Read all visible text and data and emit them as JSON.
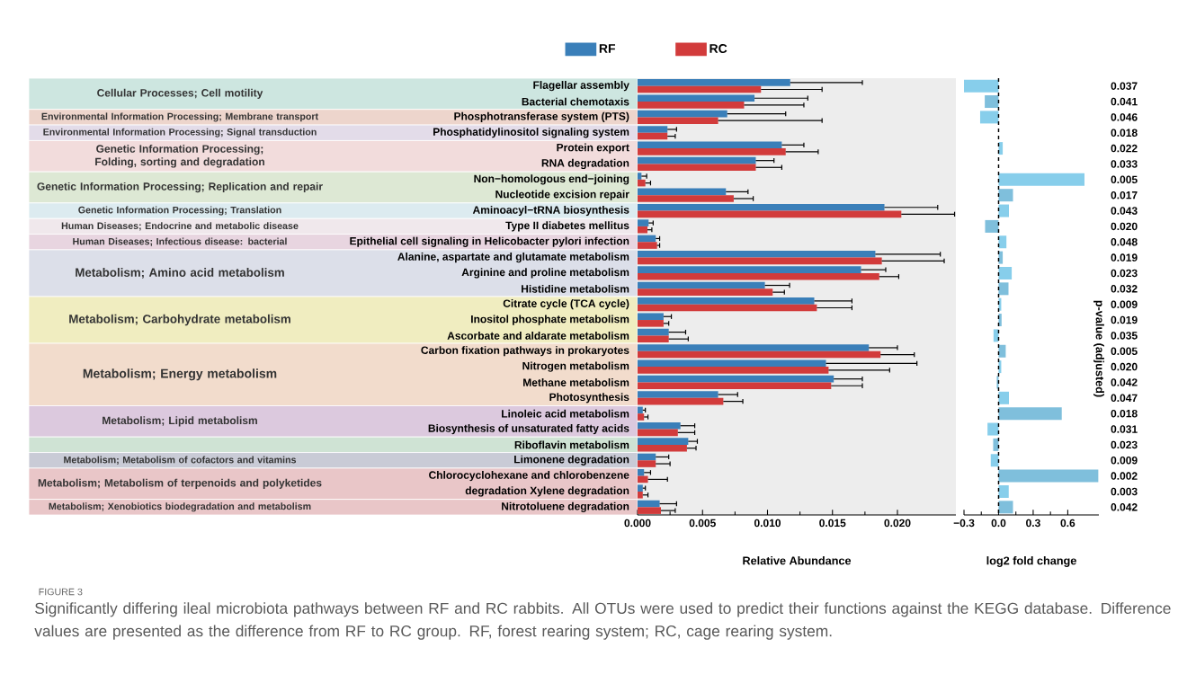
{
  "chart_data": [
    {
      "type": "bar",
      "orientation": "horizontal",
      "legend": "top",
      "xlabel": "Relative Abundance",
      "categories": [
        "Flagellar assembly",
        "Bacterial chemotaxis",
        "Phosphotransferase system (PTS)",
        "Phosphatidylinositol signaling system",
        "Protein export",
        "RNA degradation",
        "Non−homologous end−joining",
        "Nucleotide excision repair",
        "Aminoacyl−tRNA biosynthesis",
        "Type II diabetes mellitus",
        "Epithelial cell signaling in Helicobacter pylori infection",
        "Alanine, aspartate and glutamate metabolism",
        "Arginine and proline metabolism",
        "Histidine metabolism",
        "Citrate cycle (TCA cycle)",
        "Inositol phosphate metabolism",
        "Ascorbate and aldarate metabolism",
        "Carbon fixation pathways in prokaryotes",
        "Nitrogen metabolism",
        "Methane metabolism",
        "Photosynthesis",
        "Linoleic acid metabolism",
        "Biosynthesis of unsaturated fatty acids",
        "Riboflavin metabolism",
        "Limonene degradation",
        "Chlorocyclohexane and chlorobenzene",
        "degradation Xylene degradation",
        "Nitrotoluene degradation"
      ],
      "series": [
        {
          "name": "RF",
          "color": "#3a7fb9",
          "values": [
            0.01175,
            0.009,
            0.0069,
            0.0023,
            0.0111,
            0.0091,
            0.0003,
            0.0068,
            0.019,
            0.00085,
            0.0014,
            0.0183,
            0.0172,
            0.0098,
            0.0136,
            0.002,
            0.0024,
            0.0178,
            0.0145,
            0.0151,
            0.0062,
            0.0004,
            0.0033,
            0.0039,
            0.0014,
            0.0005,
            0.0004,
            0.0017
          ],
          "errors": [
            [
              0.01175,
              0.0173
            ],
            [
              0.009,
              0.0131
            ],
            [
              0.0069,
              0.0114
            ],
            [
              0.0023,
              0.003
            ],
            [
              0.0111,
              0.0128
            ],
            [
              0.0091,
              0.0105
            ],
            [
              0.0003,
              0.0007
            ],
            [
              0.0068,
              0.0085
            ],
            [
              0.019,
              0.0231
            ],
            [
              0.00085,
              0.0012
            ],
            [
              0.0014,
              0.0017
            ],
            [
              0.0183,
              0.0233
            ],
            [
              0.0172,
              0.0191
            ],
            [
              0.0098,
              0.0117
            ],
            [
              0.0136,
              0.0165
            ],
            [
              0.002,
              0.0026
            ],
            [
              0.0024,
              0.0037
            ],
            [
              0.0178,
              0.02
            ],
            [
              0.0145,
              0.0215
            ],
            [
              0.0151,
              0.0173
            ],
            [
              0.0062,
              0.0077
            ],
            [
              0.0004,
              0.0006
            ],
            [
              0.0033,
              0.0044
            ],
            [
              0.0039,
              0.0046
            ],
            [
              0.0014,
              0.0024
            ],
            [
              0.0005,
              0.001
            ],
            [
              0.0004,
              0.0006
            ],
            [
              0.0017,
              0.003
            ]
          ]
        },
        {
          "name": "RC",
          "color": "#d23b3b",
          "values": [
            0.0095,
            0.0082,
            0.0062,
            0.0023,
            0.0114,
            0.0091,
            0.0006,
            0.0074,
            0.0203,
            0.00076,
            0.0015,
            0.0188,
            0.0186,
            0.0104,
            0.0138,
            0.002,
            0.0024,
            0.0187,
            0.0147,
            0.0149,
            0.0066,
            0.0005,
            0.0031,
            0.0038,
            0.0014,
            0.0008,
            0.0004,
            0.0018
          ],
          "errors": [
            [
              0.0095,
              0.0142
            ],
            [
              0.0082,
              0.0128
            ],
            [
              0.0062,
              0.0142
            ],
            [
              0.0023,
              0.0029
            ],
            [
              0.0114,
              0.0139
            ],
            [
              0.0091,
              0.0111
            ],
            [
              0.0006,
              0.001
            ],
            [
              0.0074,
              0.0089
            ],
            [
              0.0203,
              0.0244
            ],
            [
              0.00076,
              0.0011
            ],
            [
              0.0015,
              0.0017
            ],
            [
              0.0188,
              0.0236
            ],
            [
              0.0186,
              0.0201
            ],
            [
              0.0104,
              0.0113
            ],
            [
              0.0138,
              0.0165
            ],
            [
              0.002,
              0.0024
            ],
            [
              0.0024,
              0.0039
            ],
            [
              0.0187,
              0.0213
            ],
            [
              0.0147,
              0.0194
            ],
            [
              0.0149,
              0.0173
            ],
            [
              0.0066,
              0.0081
            ],
            [
              0.0005,
              0.0008
            ],
            [
              0.0031,
              0.0044
            ],
            [
              0.0038,
              0.0045
            ],
            [
              0.0014,
              0.0025
            ],
            [
              0.0008,
              0.0023
            ],
            [
              0.0004,
              0.0008
            ],
            [
              0.0018,
              0.0029
            ]
          ]
        }
      ],
      "xlim": [
        0,
        0.0245
      ],
      "xticks": [
        {
          "value": 0,
          "label": "0.000"
        },
        {
          "value": 0.005,
          "label": "0.005"
        },
        {
          "value": 0.01,
          "label": "0.010"
        },
        {
          "value": 0.015,
          "label": "0.015"
        },
        {
          "value": 0.02,
          "label": "0.020"
        }
      ],
      "annotations": [
        "Cellular Processes; Cell motility",
        "Environmental Information Processing; Membrane transport",
        "Environmental Information Processing; Signal transduction",
        "Genetic Information Processing; Folding, sorting and degradation",
        "Genetic Information Processing; Replication and repair",
        "Genetic Information Processing; Translation",
        "Human Diseases; Endocrine and metabolic disease",
        "Human Diseases; Infectious disease: bacterial",
        "Metabolism; Amino acid metabolism",
        "Metabolism; Carbohydrate metabolism",
        "Metabolism; Energy metabolism",
        "Metabolism; Lipid metabolism",
        "Metabolism; Metabolism of cofactors and vitamins",
        "Metabolism; Metabolism of terpenoids and polyketides",
        "Metabolism; Xenobiotics biodegradation and metabolism",
        "FIGURE 3",
        "Significantly differing ileal microbiota pathways between RF and RC rabbits. All OTUs were used to predict their functions against the KEGG database. Difference values are presented as the difference from RF to RC group. RF, forest rearing system; RC, cage rearing system."
      ]
    },
    {
      "type": "bar",
      "orientation": "horizontal",
      "xlabel": "log2 fold change",
      "y2label": "p-value (adjusted)",
      "categories": [
        "0.037",
        "0.041",
        "0.046",
        "0.018",
        "0.022",
        "0.033",
        "0.005",
        "0.017",
        "0.043",
        "0.020",
        "0.048",
        "0.019",
        "0.023",
        "0.032",
        "0.009",
        "0.019",
        "0.035",
        "0.005",
        "0.020",
        "0.042",
        "0.047",
        "0.018",
        "0.031",
        "0.023",
        "0.009",
        "0.002",
        "0.003",
        "0.042"
      ],
      "values": [
        -0.3,
        -0.12,
        -0.16,
        null,
        0.036,
        null,
        0.745,
        0.125,
        0.09,
        -0.117,
        0.068,
        0.036,
        0.114,
        0.086,
        0.023,
        0.026,
        -0.044,
        0.062,
        0.023,
        -0.016,
        0.09,
        0.548,
        -0.096,
        -0.047,
        -0.068,
        0.865,
        0.088,
        0.125
      ],
      "colors": [
        "#87ceeb",
        "#7fbfdc",
        "#87ceeb",
        "#7fbfdc",
        "#87ceeb",
        "#7fbfdc",
        "#87ceeb",
        "#7fbfdc",
        "#87ceeb",
        "#7fbfdc",
        "#87ceeb",
        "#7fbfdc",
        "#87ceeb",
        "#7fbfdc",
        "#87ceeb",
        "#7fbfdc",
        "#87ceeb",
        "#7fbfdc",
        "#87ceeb",
        "#7fbfdc",
        "#87ceeb",
        "#7fbfdc",
        "#87ceeb",
        "#7fbfdc",
        "#87ceeb",
        "#7fbfdc",
        "#87ceeb",
        "#7fbfdc"
      ],
      "xlim": [
        -0.3,
        0.87
      ],
      "xticks": [
        {
          "value": -0.3,
          "label": "−0.3"
        },
        {
          "value": 0,
          "label": "0.0"
        },
        {
          "value": 0.3,
          "label": "0.3"
        },
        {
          "value": 0.6,
          "label": "0.6"
        }
      ],
      "ref_lines": [
        {
          "axis": "x",
          "value": 0,
          "line_style": "dashed"
        }
      ]
    }
  ]
}
